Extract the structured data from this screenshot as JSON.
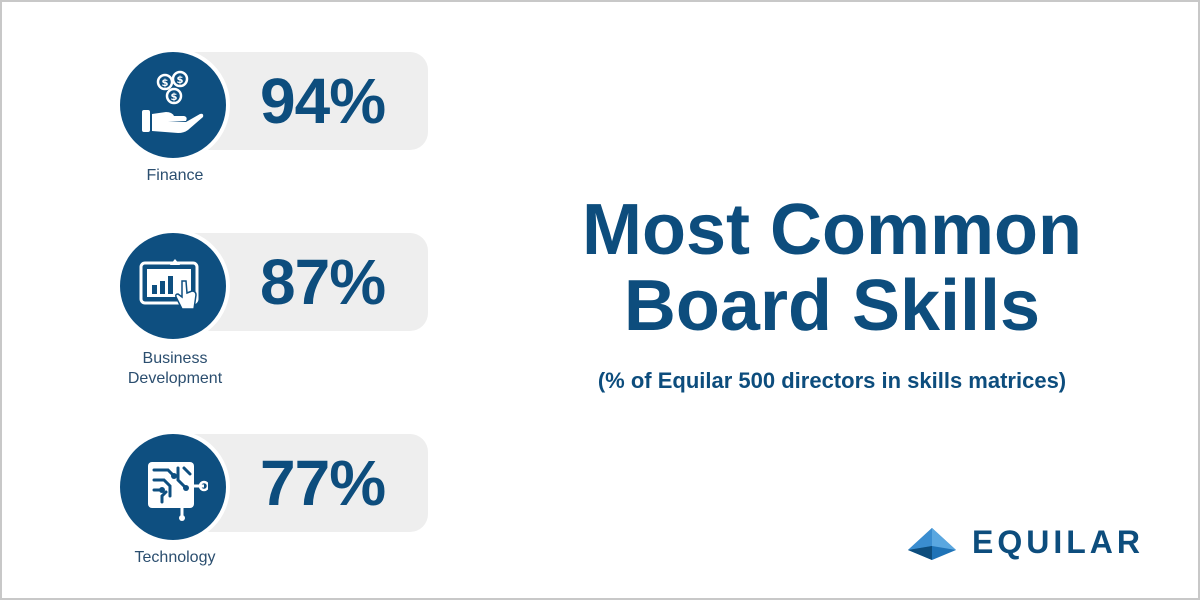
{
  "chart_data": {
    "type": "bar",
    "title": "Most Common Board Skills",
    "title_lines": [
      "Most Common",
      "Board Skills"
    ],
    "subtitle": "(% of Equilar 500 directors in skills matrices)",
    "unit": "%",
    "categories": [
      "Finance",
      "Business Development",
      "Technology"
    ],
    "category_lines": [
      [
        "Finance"
      ],
      [
        "Business",
        "Development"
      ],
      [
        "Technology"
      ]
    ],
    "values": [
      94,
      87,
      77
    ],
    "value_labels": [
      "94%",
      "87%",
      "77%"
    ],
    "icons": [
      "hand-coins-icon",
      "tablet-chart-icon",
      "circuit-board-icon"
    ]
  },
  "brand": {
    "name": "EQUILAR",
    "primary_color": "#0d4d7d",
    "pill_color": "#eeeeee"
  }
}
